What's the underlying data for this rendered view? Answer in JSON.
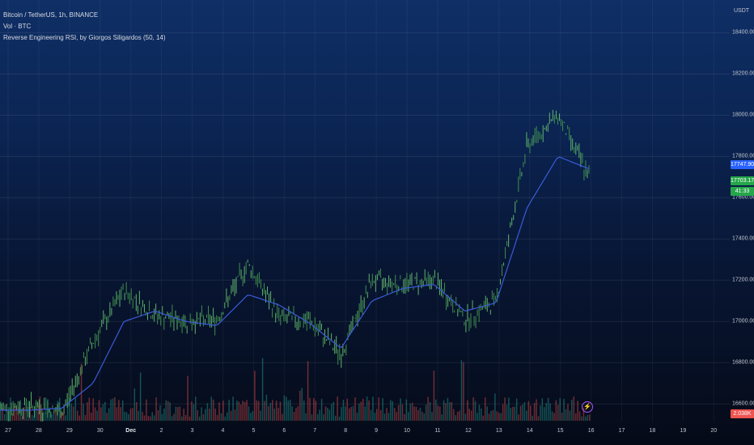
{
  "legend": {
    "symbol": "Bitcoin / TetherUS, 1h, BINANCE",
    "volume": "Vol · BTC",
    "indicator": "Reverse Engineering RSI, by Giorgos Siligardos (50, 14)"
  },
  "price_scale": {
    "unit": "USDT",
    "ticks": [
      "18400.00",
      "18200.00",
      "18000.00",
      "17800.00",
      "17600.00",
      "17400.00",
      "17200.00",
      "17000.00",
      "16800.00",
      "16600.00"
    ],
    "tags": [
      {
        "text": "17747.90",
        "color": "#2962ff"
      },
      {
        "text": "17703.17",
        "color": "#26a64a"
      },
      {
        "text": "41:33",
        "color": "#26a64a"
      },
      {
        "text": "2.038K",
        "color": "#ef5350"
      }
    ]
  },
  "x_axis": {
    "ticks": [
      {
        "label": "27",
        "bold": false
      },
      {
        "label": "28",
        "bold": false
      },
      {
        "label": "29",
        "bold": false
      },
      {
        "label": "30",
        "bold": false
      },
      {
        "label": "Dec",
        "bold": true
      },
      {
        "label": "2",
        "bold": false
      },
      {
        "label": "3",
        "bold": false
      },
      {
        "label": "4",
        "bold": false
      },
      {
        "label": "5",
        "bold": false
      },
      {
        "label": "6",
        "bold": false
      },
      {
        "label": "7",
        "bold": false
      },
      {
        "label": "8",
        "bold": false
      },
      {
        "label": "9",
        "bold": false
      },
      {
        "label": "10",
        "bold": false
      },
      {
        "label": "11",
        "bold": false
      },
      {
        "label": "12",
        "bold": false
      },
      {
        "label": "13",
        "bold": false
      },
      {
        "label": "14",
        "bold": false
      },
      {
        "label": "15",
        "bold": false
      },
      {
        "label": "16",
        "bold": false
      },
      {
        "label": "17",
        "bold": false
      },
      {
        "label": "18",
        "bold": false
      },
      {
        "label": "19",
        "bold": false
      },
      {
        "label": "20",
        "bold": false
      }
    ]
  },
  "chart_data": {
    "type": "line",
    "ylim": [
      16550,
      18480
    ],
    "x": [
      "Nov 27",
      "Nov 28",
      "Nov 29",
      "Nov 30",
      "Dec 1",
      "Dec 2",
      "Dec 3",
      "Dec 4",
      "Dec 5",
      "Dec 6",
      "Dec 7",
      "Dec 8",
      "Dec 9",
      "Dec 10",
      "Dec 11",
      "Dec 12",
      "Dec 13",
      "Dec 14",
      "Dec 15",
      "Dec 15.5"
    ],
    "series": [
      {
        "values": [
          16580,
          16590,
          16560,
          16900,
          17150,
          17030,
          17000,
          17010,
          17280,
          17020,
          17000,
          16840,
          17200,
          17180,
          17200,
          17010,
          17100,
          17850,
          18000,
          17700
        ],
        "color": "#7cc47c"
      },
      {
        "values": [
          16570,
          16570,
          16580,
          16700,
          17000,
          17050,
          17000,
          16980,
          17130,
          17080,
          16990,
          16870,
          17100,
          17160,
          17180,
          17050,
          17090,
          17550,
          17800,
          17740
        ],
        "color": "#3a5bd9"
      }
    ],
    "volume": {
      "series_label": "Vol · BTC",
      "last_value": "2.038K"
    }
  }
}
